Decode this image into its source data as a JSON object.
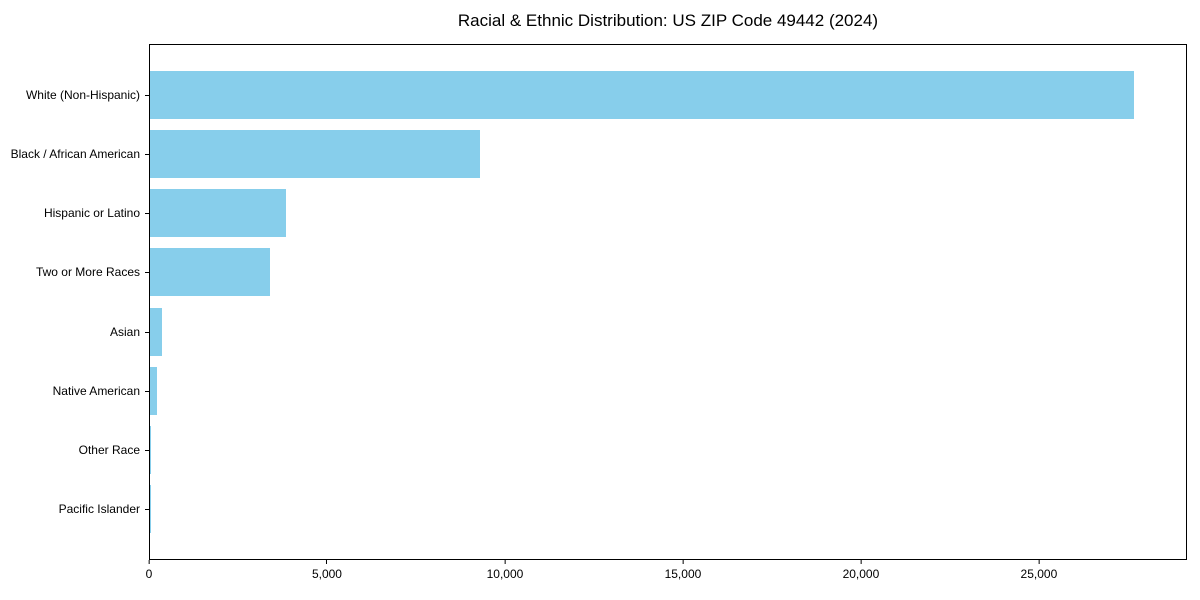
{
  "chart_data": {
    "type": "bar",
    "orientation": "horizontal",
    "title": "Racial & Ethnic Distribution: US ZIP Code 49442 (2024)",
    "categories": [
      "White (Non-Hispanic)",
      "Black / African American",
      "Hispanic or Latino",
      "Two or More Races",
      "Asian",
      "Native American",
      "Other Race",
      "Pacific Islander"
    ],
    "values": [
      27700,
      9280,
      3840,
      3380,
      330,
      190,
      25,
      15
    ],
    "bar_color": "#87CEEB",
    "xlabel": "",
    "ylabel": "",
    "xlim": [
      0,
      29160
    ],
    "xticks": [
      0,
      5000,
      10000,
      15000,
      20000,
      25000
    ],
    "xtick_labels": [
      "0",
      "5,000",
      "10,000",
      "15,000",
      "20,000",
      "25,000"
    ],
    "grid": false,
    "legend": null,
    "plot_background": "#ffffff",
    "spine_color": "#000000"
  }
}
